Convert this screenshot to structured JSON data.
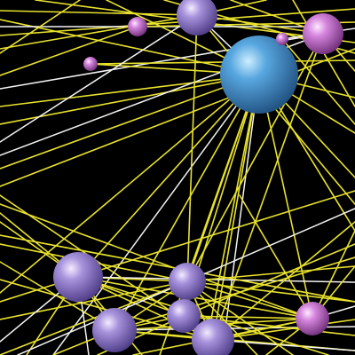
{
  "scene": {
    "background": "#000000",
    "edge_colors": {
      "yellow": "#e8e22c",
      "white": "#f4f4f4"
    },
    "node_styles": {
      "blue": {
        "highlight": "#cdeeff",
        "base": "#58a7e0",
        "shadow": "#1f4f7e"
      },
      "lavender": {
        "highlight": "#f3ebff",
        "base": "#a792dc",
        "shadow": "#4c3a84"
      },
      "pink": {
        "highlight": "#ffe9ff",
        "base": "#d586dd",
        "shadow": "#6e2d78"
      }
    }
  }
}
